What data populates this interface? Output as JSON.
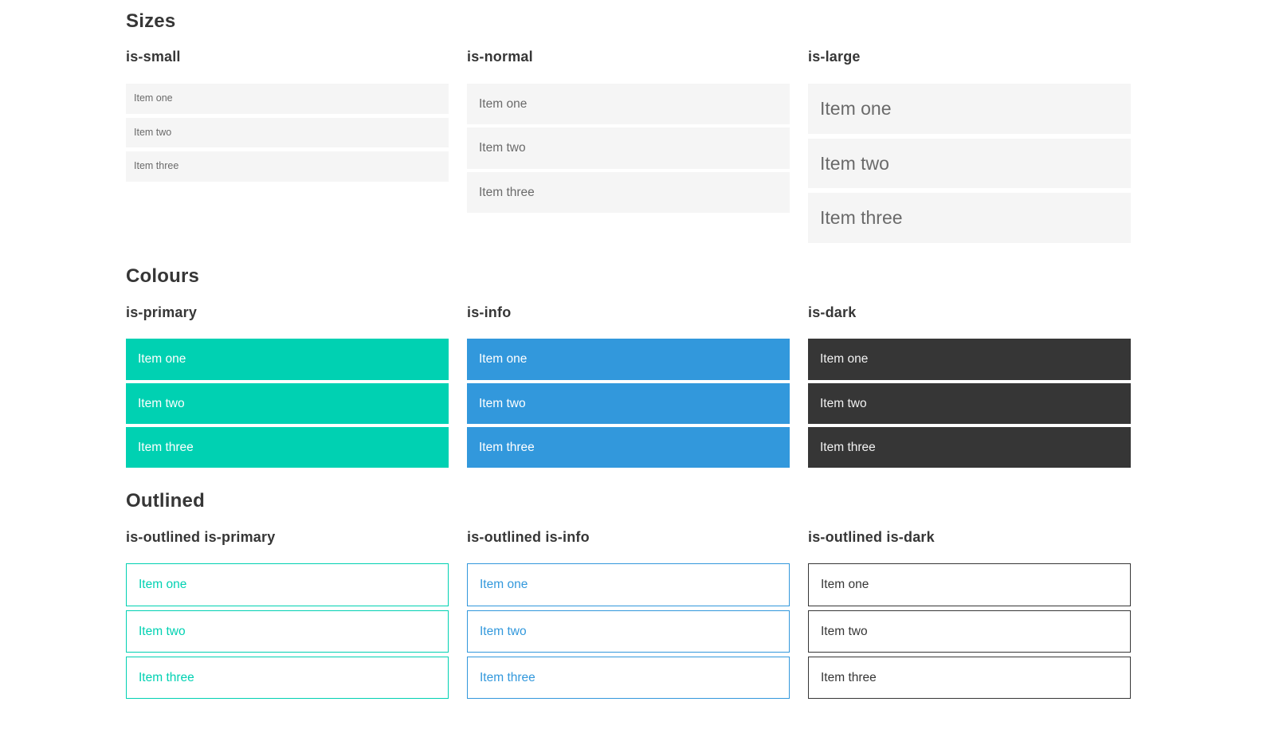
{
  "page": {
    "sections": [
      {
        "title": "Sizes",
        "groups": [
          {
            "label": "is-small",
            "items": [
              "Item one",
              "Item two",
              "Item three"
            ]
          },
          {
            "label": "is-normal",
            "items": [
              "Item one",
              "Item two",
              "Item three"
            ]
          },
          {
            "label": "is-large",
            "items": [
              "Item one",
              "Item two",
              "Item three"
            ]
          }
        ]
      },
      {
        "title": "Colours",
        "groups": [
          {
            "label": "is-primary",
            "items": [
              "Item one",
              "Item two",
              "Item three"
            ]
          },
          {
            "label": "is-info",
            "items": [
              "Item one",
              "Item two",
              "Item three"
            ]
          },
          {
            "label": "is-dark",
            "items": [
              "Item one",
              "Item two",
              "Item three"
            ]
          }
        ]
      },
      {
        "title": "Outlined",
        "groups": [
          {
            "label": "is-outlined is-primary",
            "items": [
              "Item one",
              "Item two",
              "Item three"
            ]
          },
          {
            "label": "is-outlined is-info",
            "items": [
              "Item one",
              "Item two",
              "Item three"
            ]
          },
          {
            "label": "is-outlined is-dark",
            "items": [
              "Item one",
              "Item two",
              "Item three"
            ]
          }
        ]
      }
    ],
    "colors": {
      "primary": "#00d1b2",
      "info": "#3298dc",
      "dark": "#363636",
      "list_item_bg": "#f5f5f5",
      "list_item_text": "#6a6a6a",
      "heading_text": "#363636"
    }
  }
}
